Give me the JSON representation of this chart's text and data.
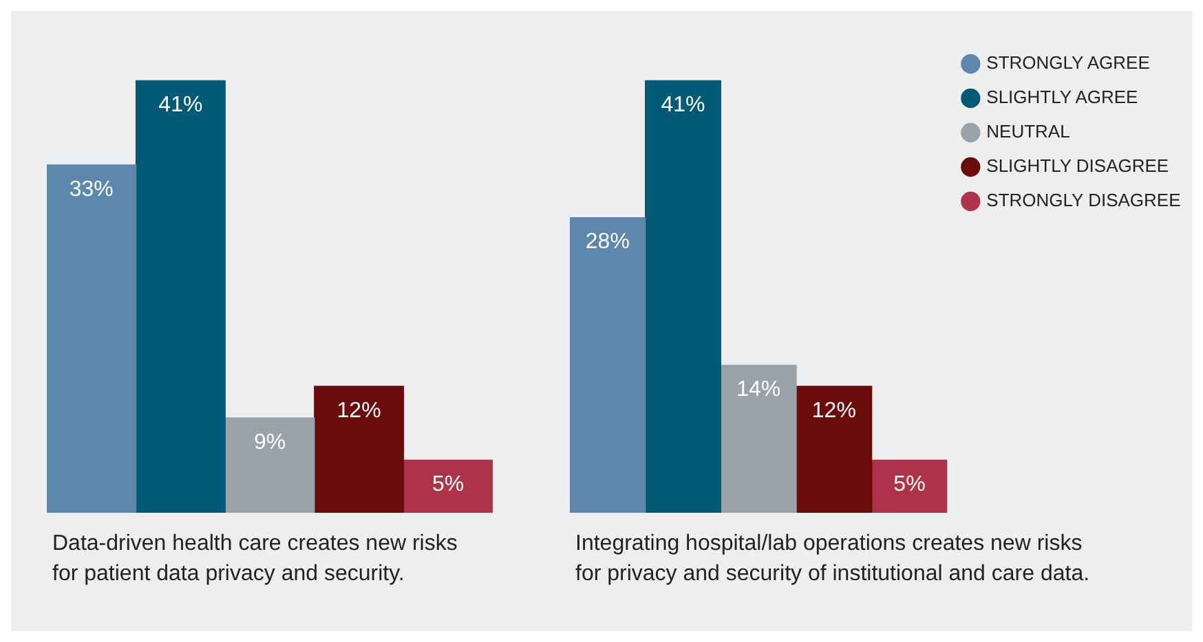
{
  "chart_data": [
    {
      "type": "bar",
      "xlabel": "Data-driven health care creates new risks for patient data privacy and security.",
      "categories": [
        null
      ],
      "tick_labels": false,
      "legend": false,
      "series": [
        {
          "color": "#5d87ad",
          "values": [
            33
          ],
          "value_labels": [
            "33%"
          ]
        },
        {
          "color": "#005a75",
          "values": [
            41
          ],
          "value_labels": [
            "41%"
          ]
        },
        {
          "color": "#9aa2a9",
          "values": [
            9
          ],
          "value_labels": [
            "9%"
          ]
        },
        {
          "color": "#6a0c0c",
          "values": [
            12
          ],
          "value_labels": [
            "12%"
          ]
        },
        {
          "color": "#ae3249",
          "values": [
            5
          ],
          "value_labels": [
            "5%"
          ]
        }
      ]
    },
    {
      "type": "bar",
      "xlabel": "Integrating hospital/lab operations creates new risks for privacy and security of institutional and care data.",
      "categories": [
        null
      ],
      "tick_labels": false,
      "legend": "right",
      "series": [
        {
          "name": "STRONGLY AGREE",
          "color": "#5d87ad",
          "values": [
            28
          ],
          "value_labels": [
            "28%"
          ]
        },
        {
          "name": "SLIGHTLY AGREE",
          "color": "#005a75",
          "values": [
            41
          ],
          "value_labels": [
            "41%"
          ]
        },
        {
          "name": "NEUTRAL",
          "color": "#9aa2a9",
          "values": [
            14
          ],
          "value_labels": [
            "14%"
          ]
        },
        {
          "name": "SLIGHTLY DISAGREE",
          "color": "#6a0c0c",
          "values": [
            12
          ],
          "value_labels": [
            "12%"
          ]
        },
        {
          "name": "STRONGLY DISAGREE",
          "color": "#ae3249",
          "values": [
            5
          ],
          "value_labels": [
            "5%"
          ]
        }
      ]
    }
  ]
}
